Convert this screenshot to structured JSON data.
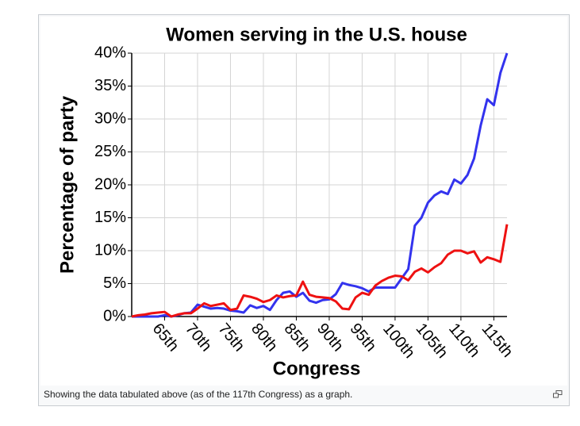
{
  "chart_data": {
    "type": "line",
    "title": "Women serving in the U.S. house",
    "xlabel": "Congress",
    "ylabel": "Percentage of party",
    "x": [
      60,
      61,
      62,
      63,
      64,
      65,
      66,
      67,
      68,
      69,
      70,
      71,
      72,
      73,
      74,
      75,
      76,
      77,
      78,
      79,
      80,
      81,
      82,
      83,
      84,
      85,
      86,
      87,
      88,
      89,
      90,
      91,
      92,
      93,
      94,
      95,
      96,
      97,
      98,
      99,
      100,
      101,
      102,
      103,
      104,
      105,
      106,
      107,
      108,
      109,
      110,
      111,
      112,
      113,
      114,
      115,
      116,
      117
    ],
    "series": [
      {
        "color": "#3333ee",
        "values": [
          0,
          0,
          0,
          0,
          0,
          0.2,
          0,
          0.2,
          0.5,
          0.6,
          1.8,
          1.5,
          1.2,
          1.3,
          1.2,
          0.9,
          0.8,
          0.6,
          1.7,
          1.3,
          1.6,
          1.0,
          2.5,
          3.6,
          3.8,
          3.0,
          3.6,
          2.4,
          2.1,
          2.5,
          2.6,
          3.4,
          5.1,
          4.8,
          4.6,
          4.3,
          3.8,
          4.4,
          4.4,
          4.4,
          4.4,
          5.8,
          7.2,
          13.8,
          15.0,
          17.3,
          18.4,
          19.0,
          18.6,
          20.8,
          20.2,
          21.5,
          24.0,
          29.0,
          33.0,
          32.1,
          37.0,
          40.0
        ]
      },
      {
        "color": "#ee1111",
        "values": [
          0,
          0.2,
          0.3,
          0.5,
          0.6,
          0.7,
          0,
          0.3,
          0.5,
          0.5,
          1.2,
          2.0,
          1.6,
          1.8,
          2.0,
          1.0,
          1.2,
          3.2,
          3.0,
          2.7,
          2.2,
          2.5,
          3.2,
          2.9,
          3.1,
          3.2,
          5.3,
          3.3,
          3.0,
          2.9,
          2.8,
          2.3,
          1.2,
          1.1,
          2.9,
          3.6,
          3.3,
          4.7,
          5.4,
          5.9,
          6.2,
          6.1,
          5.5,
          6.8,
          7.3,
          6.7,
          7.5,
          8.1,
          9.4,
          10.0,
          10.0,
          9.6,
          9.9,
          8.2,
          9.0,
          8.7,
          8.3,
          14.0
        ]
      }
    ],
    "xlim": [
      60,
      117
    ],
    "xticks": [
      {
        "value": 65,
        "label": "65th"
      },
      {
        "value": 70,
        "label": "70th"
      },
      {
        "value": 75,
        "label": "75th"
      },
      {
        "value": 80,
        "label": "80th"
      },
      {
        "value": 85,
        "label": "85th"
      },
      {
        "value": 90,
        "label": "90th"
      },
      {
        "value": 95,
        "label": "95th"
      },
      {
        "value": 100,
        "label": "100th"
      },
      {
        "value": 105,
        "label": "105th"
      },
      {
        "value": 110,
        "label": "110th"
      },
      {
        "value": 115,
        "label": "115th"
      }
    ],
    "ylim": [
      0,
      40
    ],
    "yticks": [
      {
        "value": 0,
        "label": "0%"
      },
      {
        "value": 5,
        "label": "5%"
      },
      {
        "value": 10,
        "label": "10%"
      },
      {
        "value": 15,
        "label": "15%"
      },
      {
        "value": 20,
        "label": "20%"
      },
      {
        "value": 25,
        "label": "25%"
      },
      {
        "value": 30,
        "label": "30%"
      },
      {
        "value": 35,
        "label": "35%"
      },
      {
        "value": 40,
        "label": "40%"
      }
    ],
    "grid": true
  },
  "caption": "Showing the data tabulated above (as of the 117th Congress) as a graph."
}
